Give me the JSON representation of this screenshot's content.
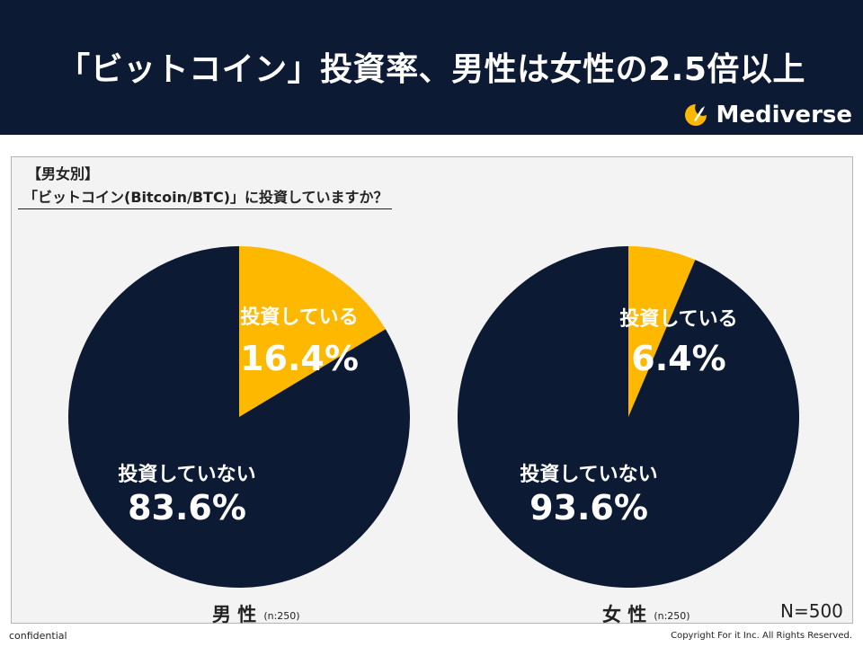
{
  "header": {
    "title": "「ビットコイン」投資率、男性は女性の2.5倍以上",
    "brand": "Mediverse"
  },
  "question": {
    "line1": "【男女別】",
    "line2": "「ビットコイン(Bitcoin/BTC)」に投資していますか？"
  },
  "colors": {
    "navy": "#0d1a33",
    "gold": "#ffb800"
  },
  "chart_data": [
    {
      "type": "pie",
      "group": "男 性",
      "n": "(n:250)",
      "slices": [
        {
          "label": "投資している",
          "value": 16.4,
          "text": "16.4%",
          "color": "#ffb800"
        },
        {
          "label": "投資していない",
          "value": 83.6,
          "text": "83.6%",
          "color": "#0d1a33"
        }
      ]
    },
    {
      "type": "pie",
      "group": "女 性",
      "n": "(n:250)",
      "slices": [
        {
          "label": "投資している",
          "value": 6.4,
          "text": "6.4%",
          "color": "#ffb800"
        },
        {
          "label": "投資していない",
          "value": 93.6,
          "text": "93.6%",
          "color": "#0d1a33"
        }
      ]
    }
  ],
  "total_n": "N=500",
  "footer": {
    "left": "confidential",
    "right": "Copyright For it Inc. All Rights Reserved."
  }
}
